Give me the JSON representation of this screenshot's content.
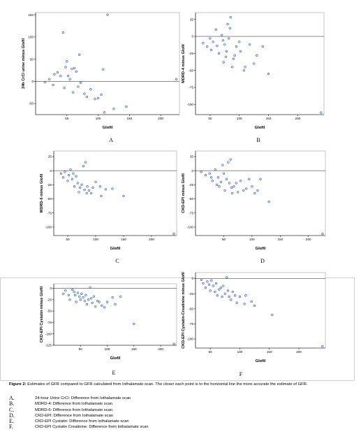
{
  "colors": {
    "points": "#3a62c6",
    "axes": "#000000",
    "reference_line": "#444444",
    "frame": "#b8b8b8"
  },
  "chart_data": [
    {
      "type": "scatter",
      "panel": "A",
      "xlabel": "Glofil",
      "ylabel": "24h CrCl urine minus Glofil",
      "xlim": [
        0,
        230
      ],
      "ylim": [
        -75,
        155
      ],
      "xticks": [
        50,
        100,
        150,
        200
      ],
      "yticks": [
        -50,
        0,
        50,
        100,
        150
      ],
      "hline": 0,
      "points": [
        [
          15,
          -2
        ],
        [
          22,
          5
        ],
        [
          28,
          -8
        ],
        [
          30,
          16
        ],
        [
          35,
          20
        ],
        [
          40,
          12
        ],
        [
          44,
          110
        ],
        [
          46,
          -15
        ],
        [
          48,
          32
        ],
        [
          50,
          45
        ],
        [
          52,
          12
        ],
        [
          55,
          5
        ],
        [
          58,
          28
        ],
        [
          60,
          -25
        ],
        [
          62,
          30
        ],
        [
          65,
          22
        ],
        [
          68,
          -12
        ],
        [
          70,
          60
        ],
        [
          72,
          -3
        ],
        [
          78,
          -28
        ],
        [
          82,
          -35
        ],
        [
          88,
          -18
        ],
        [
          95,
          -40
        ],
        [
          100,
          -38
        ],
        [
          105,
          -30
        ],
        [
          108,
          27
        ],
        [
          110,
          -70
        ],
        [
          115,
          150
        ],
        [
          125,
          -62
        ],
        [
          145,
          -57
        ],
        [
          225,
          5
        ]
      ]
    },
    {
      "type": "scatter",
      "panel": "B",
      "xlabel": "Glofil",
      "ylabel": "MDRD-4 minus Glofil",
      "xlim": [
        25,
        245
      ],
      "ylim": [
        -115,
        35
      ],
      "xticks": [
        50,
        100,
        150,
        200
      ],
      "yticks": [
        -100,
        -75,
        -50,
        -25,
        0,
        25
      ],
      "hline": 0,
      "points": [
        [
          38,
          -10
        ],
        [
          45,
          -15
        ],
        [
          50,
          -3
        ],
        [
          52,
          -20
        ],
        [
          55,
          -8
        ],
        [
          60,
          10
        ],
        [
          62,
          -14
        ],
        [
          65,
          -25
        ],
        [
          70,
          2
        ],
        [
          72,
          -6
        ],
        [
          73,
          -38
        ],
        [
          75,
          -12
        ],
        [
          77,
          -30
        ],
        [
          78,
          -22
        ],
        [
          80,
          18
        ],
        [
          82,
          -3
        ],
        [
          84,
          12
        ],
        [
          85,
          28
        ],
        [
          88,
          -45
        ],
        [
          90,
          -33
        ],
        [
          92,
          -28
        ],
        [
          95,
          -15
        ],
        [
          100,
          -8
        ],
        [
          102,
          -22
        ],
        [
          108,
          -50
        ],
        [
          110,
          -45
        ],
        [
          118,
          -12
        ],
        [
          125,
          -40
        ],
        [
          130,
          -28
        ],
        [
          140,
          -15
        ],
        [
          150,
          -55
        ],
        [
          240,
          -112
        ]
      ]
    },
    {
      "type": "scatter",
      "panel": "C",
      "xlabel": "Glofil",
      "ylabel": "MDRD-6 minus Glofil",
      "xlim": [
        25,
        245
      ],
      "ylim": [
        -115,
        35
      ],
      "xticks": [
        50,
        100,
        150,
        200
      ],
      "yticks": [
        -100,
        -75,
        -50,
        -25,
        0,
        25
      ],
      "hline": 0,
      "points": [
        [
          38,
          -5
        ],
        [
          42,
          -12
        ],
        [
          45,
          -2
        ],
        [
          50,
          -18
        ],
        [
          52,
          -8
        ],
        [
          55,
          2
        ],
        [
          58,
          -15
        ],
        [
          60,
          -5
        ],
        [
          62,
          -28
        ],
        [
          65,
          -10
        ],
        [
          68,
          -22
        ],
        [
          70,
          -38
        ],
        [
          72,
          -30
        ],
        [
          75,
          -25
        ],
        [
          78,
          8
        ],
        [
          80,
          -34
        ],
        [
          82,
          15
        ],
        [
          84,
          -40
        ],
        [
          85,
          -28
        ],
        [
          88,
          -35
        ],
        [
          92,
          -40
        ],
        [
          95,
          -30
        ],
        [
          100,
          -20
        ],
        [
          108,
          -28
        ],
        [
          110,
          -45
        ],
        [
          118,
          -33
        ],
        [
          130,
          -32
        ],
        [
          150,
          -45
        ],
        [
          240,
          -112
        ]
      ]
    },
    {
      "type": "scatter",
      "panel": "D",
      "xlabel": "Glofil",
      "ylabel": "CKD-EPI minus Glofil",
      "xlim": [
        0,
        230
      ],
      "ylim": [
        -115,
        35
      ],
      "xticks": [
        50,
        100,
        150,
        200
      ],
      "yticks": [
        -100,
        -75,
        -50,
        -25,
        0,
        25
      ],
      "hline": 0,
      "points": [
        [
          10,
          -2
        ],
        [
          18,
          -8
        ],
        [
          25,
          -5
        ],
        [
          28,
          -12
        ],
        [
          30,
          -18
        ],
        [
          35,
          2
        ],
        [
          38,
          -25
        ],
        [
          40,
          -12
        ],
        [
          42,
          -28
        ],
        [
          45,
          -20
        ],
        [
          48,
          10
        ],
        [
          50,
          -5
        ],
        [
          52,
          -35
        ],
        [
          55,
          -15
        ],
        [
          58,
          15
        ],
        [
          60,
          -22
        ],
        [
          62,
          20
        ],
        [
          64,
          -30
        ],
        [
          65,
          -40
        ],
        [
          68,
          -28
        ],
        [
          72,
          -22
        ],
        [
          75,
          -38
        ],
        [
          80,
          -18
        ],
        [
          85,
          -35
        ],
        [
          90,
          -32
        ],
        [
          95,
          -15
        ],
        [
          100,
          -28
        ],
        [
          105,
          -40
        ],
        [
          110,
          -35
        ],
        [
          115,
          -15
        ],
        [
          130,
          -55
        ],
        [
          225,
          -112
        ]
      ]
    },
    {
      "type": "scatter",
      "panel": "E",
      "xlabel": "Glofil",
      "ylabel": "CKD-EPI Cystatin minus Glofil",
      "xlim": [
        0,
        230
      ],
      "ylim": [
        -125,
        10
      ],
      "xticks": [
        50,
        100,
        150,
        200
      ],
      "yticks": [
        -125,
        -100,
        -75,
        -50,
        -25,
        0
      ],
      "hline": 0,
      "points": [
        [
          18,
          -12
        ],
        [
          22,
          -5
        ],
        [
          28,
          -15
        ],
        [
          30,
          -25
        ],
        [
          35,
          -3
        ],
        [
          38,
          -8
        ],
        [
          40,
          -15
        ],
        [
          42,
          -30
        ],
        [
          45,
          -10
        ],
        [
          48,
          -18
        ],
        [
          50,
          -25
        ],
        [
          52,
          -12
        ],
        [
          55,
          -20
        ],
        [
          58,
          -28
        ],
        [
          60,
          -15
        ],
        [
          62,
          -35
        ],
        [
          65,
          -25
        ],
        [
          68,
          2
        ],
        [
          70,
          -22
        ],
        [
          72,
          -32
        ],
        [
          75,
          -18
        ],
        [
          78,
          -40
        ],
        [
          82,
          -28
        ],
        [
          85,
          -30
        ],
        [
          90,
          -38
        ],
        [
          95,
          -42
        ],
        [
          100,
          -30
        ],
        [
          110,
          -20
        ],
        [
          115,
          -35
        ],
        [
          125,
          -18
        ],
        [
          150,
          -78
        ],
        [
          225,
          -122
        ]
      ]
    },
    {
      "type": "scatter",
      "panel": "F",
      "xlabel": "Glofil",
      "ylabel": "CKD-EPI Cystatin-Creatinine minus Glofil",
      "xlim": [
        25,
        245
      ],
      "ylim": [
        -115,
        10
      ],
      "xticks": [
        50,
        100,
        150,
        200
      ],
      "yticks": [
        -100,
        -75,
        -50,
        -25,
        0
      ],
      "hline": 0,
      "points": [
        [
          35,
          -2
        ],
        [
          38,
          -8
        ],
        [
          42,
          -15
        ],
        [
          45,
          -5
        ],
        [
          48,
          -10
        ],
        [
          50,
          -20
        ],
        [
          52,
          -3
        ],
        [
          55,
          -12
        ],
        [
          58,
          -22
        ],
        [
          60,
          -8
        ],
        [
          62,
          -28
        ],
        [
          65,
          -18
        ],
        [
          68,
          -15
        ],
        [
          70,
          -30
        ],
        [
          72,
          -12
        ],
        [
          75,
          -25
        ],
        [
          78,
          2
        ],
        [
          80,
          -20
        ],
        [
          82,
          -30
        ],
        [
          85,
          -35
        ],
        [
          88,
          -22
        ],
        [
          92,
          -28
        ],
        [
          95,
          -40
        ],
        [
          100,
          -30
        ],
        [
          108,
          -42
        ],
        [
          110,
          -28
        ],
        [
          120,
          -38
        ],
        [
          125,
          -45
        ],
        [
          155,
          -60
        ],
        [
          240,
          -112
        ]
      ]
    }
  ],
  "panel_letters": [
    "A",
    "B",
    "C",
    "D",
    "E",
    "F"
  ],
  "caption": {
    "fig_num": "Figure 2:",
    "text": " Estimates of GFR compared to GFR calculated from Iothalamate scan. The closer each point is to the horizontal line the more accurate the estimate of GFR."
  },
  "legend": [
    {
      "key": "A.",
      "text": "24-hour Urine CrCl: Difference from Iothalamate scan"
    },
    {
      "key": "B.",
      "text": "MDRD-4: Difference from Iothalamate scan"
    },
    {
      "key": "C.",
      "text": "MDRD-6: Difference from Iothalamate scan"
    },
    {
      "key": "D.",
      "text": "CKD-EPI: Difference from Iothalamate scan"
    },
    {
      "key": "E.",
      "text": "CKD-EPI Cystatin: Difference from Iothalamate scan"
    },
    {
      "key": "F.",
      "text": "CKD-EPI Cystatin Creatinine: Difference from Iothalamate scan"
    }
  ]
}
